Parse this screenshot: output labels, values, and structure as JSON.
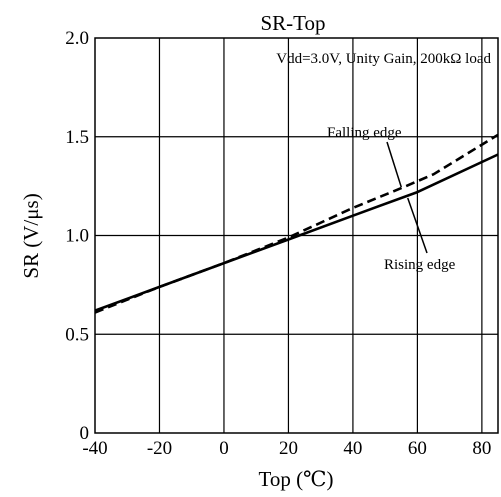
{
  "chart_data": {
    "type": "line",
    "title": "SR-Top",
    "subtitle": "Vdd=3.0V, Unity Gain, 200kΩ load",
    "xlabel": "Top (℃)",
    "ylabel": "SR (V/μs)",
    "xlim": [
      -40,
      85
    ],
    "ylim": [
      0,
      2.0
    ],
    "xticks": [
      -40,
      -20,
      0,
      20,
      40,
      60,
      80
    ],
    "yticks": [
      0,
      0.5,
      1.0,
      1.5,
      2.0
    ],
    "xtick_labels": [
      "-40",
      "-20",
      "0",
      "20",
      "40",
      "60",
      "80"
    ],
    "ytick_labels": [
      "0",
      "0.5",
      "1.0",
      "1.5",
      "2.0"
    ],
    "grid": true,
    "series": [
      {
        "name": "Rising edge",
        "style": "solid",
        "color": "#000000",
        "x": [
          -40,
          -20,
          0,
          20,
          40,
          60,
          85
        ],
        "y": [
          0.62,
          0.74,
          0.86,
          0.98,
          1.1,
          1.22,
          1.41
        ]
      },
      {
        "name": "Falling edge",
        "style": "dashed",
        "color": "#000000",
        "x": [
          -40,
          -20,
          0,
          20,
          40,
          55,
          65,
          85
        ],
        "y": [
          0.61,
          0.74,
          0.86,
          0.99,
          1.14,
          1.24,
          1.31,
          1.51
        ]
      }
    ],
    "annotations": [
      {
        "text": "Falling edge",
        "target_series": 1,
        "target_x": 55,
        "target_y": 1.245
      },
      {
        "text": "Rising edge",
        "target_series": 0,
        "target_x": 57,
        "target_y": 1.19
      }
    ]
  }
}
